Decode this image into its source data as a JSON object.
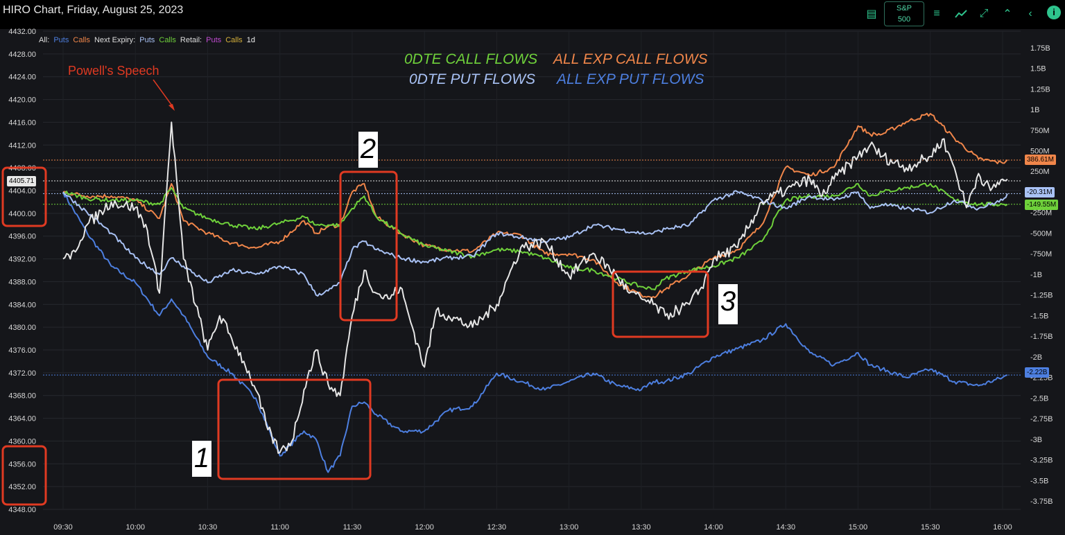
{
  "window": {
    "title": "HIRO Chart, Friday, August 25, 2023"
  },
  "toolbar": {
    "ticker_line1": "S&P",
    "ticker_line2": "500",
    "icons": [
      "list-icon",
      "sliders-icon",
      "line-chart-icon",
      "compress-icon",
      "chevron-up-icon",
      "chevron-left-icon",
      "info-icon"
    ],
    "info_label": "i"
  },
  "legend": {
    "all_label": "All:",
    "all_puts": "Puts",
    "all_calls": "Calls",
    "next_label": "Next Expiry:",
    "next_puts": "Puts",
    "next_calls": "Calls",
    "retail_label": "Retail:",
    "retail_puts": "Puts",
    "retail_calls": "Calls",
    "period": "1d"
  },
  "flow_labels": {
    "dte0_call": "0DTE CALL FLOWS",
    "all_call": "ALL EXP CALL FLOWS",
    "dte0_put": "0DTE PUT FLOWS",
    "all_put": "ALL EXP PUT FLOWS"
  },
  "annotations": {
    "powell": "Powell's Speech",
    "box1": "1",
    "box2": "2",
    "box3": "3"
  },
  "colors": {
    "price": "#e6e6e6",
    "all_exp_calls": "#f0864a",
    "dte0_calls": "#6fd13b",
    "all_exp_puts": "#4d7fe0",
    "dte0_puts": "#a9c2f5",
    "highlight": "#e03a22",
    "accent": "#2ec48d"
  },
  "tags": {
    "price": "4405.71",
    "all_call": "386.61M",
    "dte0_put": "-20.31M",
    "dte0_call": "-149.55M",
    "all_put": "-2.22B"
  },
  "chart_data": {
    "type": "line",
    "title": "",
    "x_ticks": [
      "09:30",
      "10:00",
      "10:30",
      "11:00",
      "11:30",
      "12:00",
      "12:30",
      "13:00",
      "13:30",
      "14:00",
      "14:30",
      "15:00",
      "15:30",
      "16:00"
    ],
    "y_left_ticks": [
      "4432.00",
      "4428.00",
      "4424.00",
      "4420.00",
      "4416.00",
      "4412.00",
      "4408.00",
      "4404.00",
      "4400.00",
      "4396.00",
      "4392.00",
      "4388.00",
      "4384.00",
      "4380.00",
      "4376.00",
      "4372.00",
      "4368.00",
      "4364.00",
      "4360.00",
      "4356.00",
      "4352.00",
      "4348.00"
    ],
    "y_left_range": [
      4348,
      4432
    ],
    "y_right_ticks": [
      "1.75B",
      "1.5B",
      "1.25B",
      "1B",
      "750M",
      "500M",
      "250M",
      "0",
      "-250M",
      "-500M",
      "-750M",
      "-1B",
      "-1.25B",
      "-1.5B",
      "-1.75B",
      "-2B",
      "-2.25B",
      "-2.5B",
      "-2.75B",
      "-3B",
      "-3.25B",
      "-3.5B",
      "-3.75B"
    ],
    "y_right_range": [
      -3.85,
      1.95
    ],
    "series": [
      {
        "name": "Price",
        "axis": "left",
        "color_key": "price",
        "x": [
          "09:30",
          "09:33",
          "09:40",
          "09:50",
          "10:00",
          "10:05",
          "10:10",
          "10:15",
          "10:20",
          "10:30",
          "10:35",
          "10:40",
          "10:45",
          "10:50",
          "10:55",
          "11:00",
          "11:05",
          "11:10",
          "11:15",
          "11:20",
          "11:25",
          "11:30",
          "11:35",
          "11:40",
          "11:45",
          "11:50",
          "11:55",
          "12:00",
          "12:05",
          "12:10",
          "12:20",
          "12:30",
          "12:40",
          "12:50",
          "13:00",
          "13:10",
          "13:20",
          "13:25",
          "13:30",
          "13:35",
          "13:40",
          "13:45",
          "13:50",
          "13:55",
          "14:00",
          "14:10",
          "14:20",
          "14:30",
          "14:40",
          "14:45",
          "14:50",
          "15:00",
          "15:05",
          "15:10",
          "15:20",
          "15:30",
          "15:35",
          "15:40",
          "15:45",
          "15:50",
          "15:55",
          "16:00",
          "16:02"
        ],
        "y": [
          4392,
          4392,
          4398,
          4402,
          4401,
          4397,
          4386,
          4416,
          4392,
          4376,
          4382,
          4378,
          4374,
          4369,
          4362,
          4358,
          4360,
          4369,
          4376,
          4370,
          4368,
          4382,
          4390,
          4386,
          4385,
          4387,
          4380,
          4373,
          4383,
          4382,
          4380,
          4384,
          4394,
          4395,
          4389,
          4393,
          4389,
          4386,
          4385,
          4384,
          4382,
          4383,
          4384,
          4387,
          4392,
          4394,
          4402,
          4404,
          4406,
          4403,
          4406,
          4410,
          4412,
          4410,
          4408,
          4410,
          4413,
          4408,
          4401,
          4407,
          4404,
          4406,
          4406
        ]
      },
      {
        "name": "All Exp Calls",
        "axis": "right",
        "color_key": "all_exp_calls",
        "x": [
          "09:30",
          "09:40",
          "09:50",
          "10:00",
          "10:10",
          "10:15",
          "10:20",
          "10:30",
          "10:40",
          "10:50",
          "11:00",
          "11:10",
          "11:15",
          "11:20",
          "11:25",
          "11:30",
          "11:35",
          "11:40",
          "11:50",
          "12:00",
          "12:10",
          "12:20",
          "12:30",
          "12:40",
          "12:50",
          "13:00",
          "13:10",
          "13:20",
          "13:30",
          "13:35",
          "13:40",
          "13:50",
          "14:00",
          "14:10",
          "14:20",
          "14:30",
          "14:40",
          "14:50",
          "15:00",
          "15:05",
          "15:10",
          "15:20",
          "15:30",
          "15:40",
          "15:50",
          "16:00",
          "16:02"
        ],
        "y": [
          0.0,
          -0.05,
          -0.05,
          -0.1,
          -0.32,
          0.1,
          -0.35,
          -0.5,
          -0.62,
          -0.68,
          -0.6,
          -0.35,
          -0.5,
          -0.42,
          -0.4,
          0.0,
          0.1,
          -0.3,
          -0.5,
          -0.65,
          -0.7,
          -0.72,
          -0.5,
          -0.52,
          -0.75,
          -0.75,
          -0.82,
          -1.1,
          -1.25,
          -1.27,
          -1.18,
          -1.0,
          -0.8,
          -0.7,
          -0.4,
          0.3,
          0.2,
          0.3,
          0.8,
          0.7,
          0.7,
          0.85,
          0.95,
          0.65,
          0.4,
          0.35,
          0.39
        ]
      },
      {
        "name": "0DTE Calls",
        "axis": "right",
        "color_key": "dte0_calls",
        "x": [
          "09:30",
          "09:40",
          "09:50",
          "10:00",
          "10:10",
          "10:15",
          "10:20",
          "10:30",
          "10:40",
          "10:50",
          "11:00",
          "11:10",
          "11:15",
          "11:20",
          "11:25",
          "11:30",
          "11:35",
          "11:40",
          "11:50",
          "12:00",
          "12:10",
          "12:20",
          "12:30",
          "12:40",
          "12:50",
          "13:00",
          "13:10",
          "13:20",
          "13:30",
          "13:35",
          "13:40",
          "13:50",
          "14:00",
          "14:10",
          "14:20",
          "14:30",
          "14:40",
          "14:50",
          "15:00",
          "15:05",
          "15:10",
          "15:20",
          "15:30",
          "15:40",
          "15:50",
          "16:00",
          "16:02"
        ],
        "y": [
          0.0,
          -0.08,
          -0.1,
          -0.1,
          -0.15,
          0.05,
          -0.2,
          -0.32,
          -0.4,
          -0.45,
          -0.38,
          -0.3,
          -0.4,
          -0.4,
          -0.4,
          -0.2,
          -0.05,
          -0.3,
          -0.5,
          -0.65,
          -0.72,
          -0.78,
          -0.7,
          -0.72,
          -0.8,
          -0.92,
          -0.95,
          -1.05,
          -1.15,
          -1.18,
          -1.05,
          -0.95,
          -0.9,
          -0.8,
          -0.6,
          -0.1,
          -0.05,
          -0.05,
          0.1,
          -0.05,
          0.0,
          0.05,
          0.1,
          -0.1,
          -0.15,
          -0.15,
          -0.15
        ]
      },
      {
        "name": "All Exp Puts",
        "axis": "right",
        "color_key": "all_exp_puts",
        "x": [
          "09:30",
          "09:40",
          "09:50",
          "10:00",
          "10:10",
          "10:15",
          "10:20",
          "10:30",
          "10:40",
          "10:50",
          "11:00",
          "11:10",
          "11:15",
          "11:20",
          "11:25",
          "11:30",
          "11:35",
          "11:40",
          "11:50",
          "12:00",
          "12:10",
          "12:20",
          "12:30",
          "12:40",
          "12:50",
          "13:00",
          "13:10",
          "13:20",
          "13:30",
          "13:35",
          "13:40",
          "13:50",
          "14:00",
          "14:10",
          "14:20",
          "14:30",
          "14:40",
          "14:50",
          "15:00",
          "15:05",
          "15:10",
          "15:20",
          "15:30",
          "15:40",
          "15:50",
          "16:00",
          "16:02"
        ],
        "y": [
          0.0,
          -0.5,
          -0.9,
          -1.1,
          -1.5,
          -1.3,
          -1.5,
          -2.0,
          -2.2,
          -2.5,
          -3.2,
          -2.9,
          -3.0,
          -3.4,
          -3.2,
          -2.6,
          -2.55,
          -2.7,
          -2.9,
          -2.9,
          -2.65,
          -2.6,
          -2.2,
          -2.3,
          -2.4,
          -2.3,
          -2.2,
          -2.35,
          -2.4,
          -2.3,
          -2.3,
          -2.2,
          -2.0,
          -1.9,
          -1.8,
          -1.6,
          -1.95,
          -2.1,
          -1.95,
          -2.1,
          -2.15,
          -2.25,
          -2.15,
          -2.3,
          -2.35,
          -2.25,
          -2.22
        ]
      },
      {
        "name": "0DTE Puts",
        "axis": "right",
        "color_key": "dte0_puts",
        "x": [
          "09:30",
          "09:40",
          "09:50",
          "10:00",
          "10:10",
          "10:15",
          "10:20",
          "10:30",
          "10:40",
          "10:50",
          "11:00",
          "11:10",
          "11:15",
          "11:20",
          "11:25",
          "11:30",
          "11:35",
          "11:40",
          "11:50",
          "12:00",
          "12:10",
          "12:20",
          "12:30",
          "12:40",
          "12:50",
          "13:00",
          "13:10",
          "13:20",
          "13:30",
          "13:35",
          "13:40",
          "13:50",
          "14:00",
          "14:10",
          "14:20",
          "14:30",
          "14:40",
          "14:50",
          "15:00",
          "15:05",
          "15:10",
          "15:20",
          "15:30",
          "15:40",
          "15:50",
          "16:00",
          "16:02"
        ],
        "y": [
          0.0,
          -0.25,
          -0.5,
          -0.8,
          -1.0,
          -0.8,
          -0.9,
          -1.1,
          -0.95,
          -1.0,
          -0.9,
          -1.0,
          -1.25,
          -1.2,
          -1.1,
          -0.7,
          -0.6,
          -0.7,
          -0.8,
          -0.85,
          -0.8,
          -0.78,
          -0.5,
          -0.55,
          -0.6,
          -0.55,
          -0.4,
          -0.45,
          -0.5,
          -0.5,
          -0.45,
          -0.4,
          -0.1,
          0.0,
          -0.1,
          -0.2,
          -0.05,
          -0.1,
          0.0,
          -0.2,
          -0.15,
          -0.2,
          -0.25,
          -0.1,
          -0.2,
          -0.1,
          -0.02
        ]
      }
    ]
  }
}
